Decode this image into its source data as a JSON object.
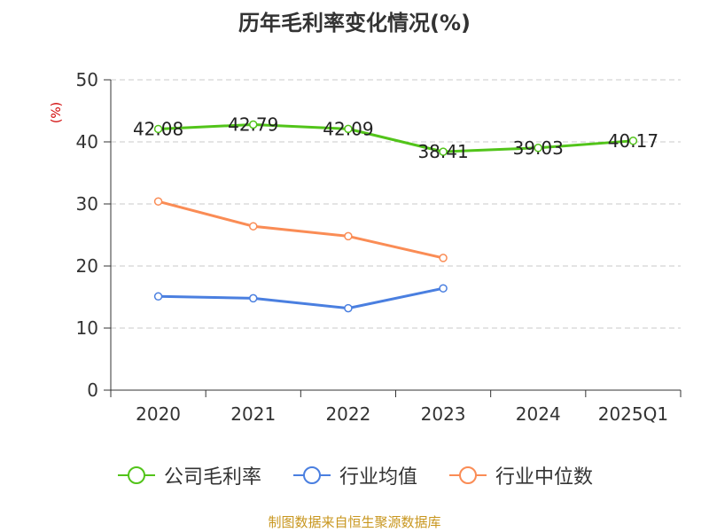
{
  "chart_data": {
    "type": "line",
    "title": "历年毛利率变化情况(%)",
    "ylabel": "(%)",
    "categories": [
      "2020",
      "2021",
      "2022",
      "2023",
      "2024",
      "2025Q1"
    ],
    "ylim": [
      0,
      50
    ],
    "yticks": [
      0,
      10,
      20,
      30,
      40,
      50
    ],
    "grid": true,
    "legend_position": "bottom",
    "series": [
      {
        "name": "公司毛利率",
        "color": "#52c41a",
        "values": [
          42.08,
          42.79,
          42.09,
          38.41,
          39.03,
          40.17
        ],
        "labels": [
          "42.08",
          "42.79",
          "42.09",
          "38.41",
          "39.03",
          "40.17"
        ]
      },
      {
        "name": "行业均值",
        "color": "#4a7fe0",
        "values": [
          15.1,
          14.8,
          13.2,
          16.4,
          null,
          null
        ]
      },
      {
        "name": "行业中位数",
        "color": "#fa8c55",
        "values": [
          30.4,
          26.4,
          24.8,
          21.3,
          null,
          null
        ]
      }
    ]
  },
  "source": "制图数据来自恒生聚源数据库"
}
